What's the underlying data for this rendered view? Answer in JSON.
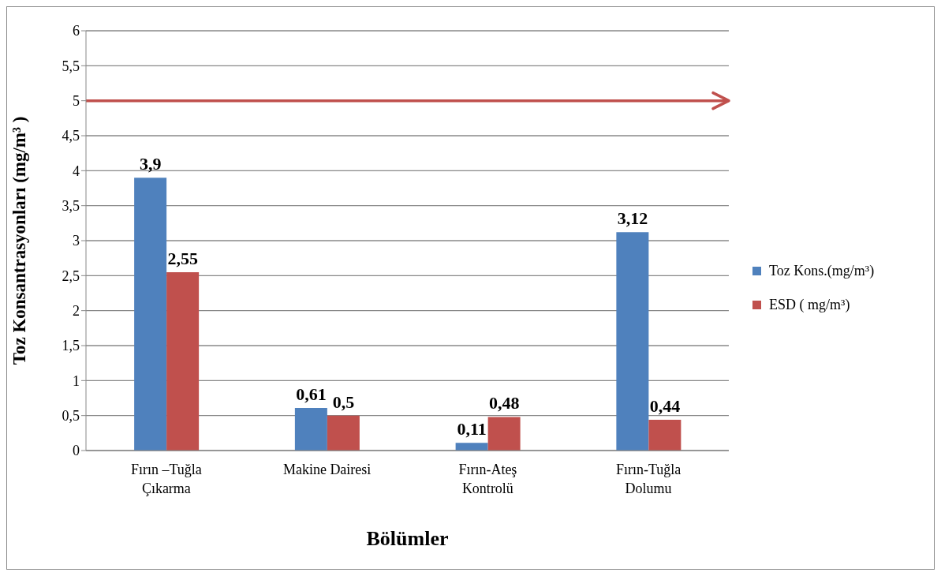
{
  "chart_data": {
    "type": "bar",
    "xlabel": "Bölümler",
    "ylabel": "Toz Konsantrasyonları (mg/m³ )",
    "categories": [
      "Fırın –Tuğla Çıkarma",
      "Makine Dairesi",
      "Fırın-Ateş Kontrolü",
      "Fırın-Tuğla Dolumu"
    ],
    "series": [
      {
        "name": "Toz Kons.(mg/m³)",
        "color": "#4f81bd",
        "values": [
          3.9,
          0.61,
          0.11,
          3.12
        ],
        "value_labels": [
          "3,9",
          "0,61",
          "0,11",
          "3,12"
        ]
      },
      {
        "name": "ESD ( mg/m³)",
        "color": "#c0504d",
        "values": [
          2.55,
          0.5,
          0.48,
          0.44
        ],
        "value_labels": [
          "2,55",
          "0,5",
          "0,48",
          "0,44"
        ]
      }
    ],
    "ylim": [
      0,
      6
    ],
    "yticks": [
      0,
      {
        "value": 0.5,
        "label": "0,5"
      },
      1,
      {
        "value": 1.5,
        "label": "1,5"
      },
      2,
      {
        "value": 2.5,
        "label": "2,5"
      },
      3,
      {
        "value": 3.5,
        "label": "3,5"
      },
      4,
      {
        "value": 4.5,
        "label": "4,5"
      },
      5,
      {
        "value": 5.5,
        "label": "5,5"
      },
      6
    ],
    "ref_lines": [
      {
        "axis": "y",
        "value": 5,
        "color": "#c0504d"
      }
    ],
    "grid": "y",
    "legend": "right"
  }
}
